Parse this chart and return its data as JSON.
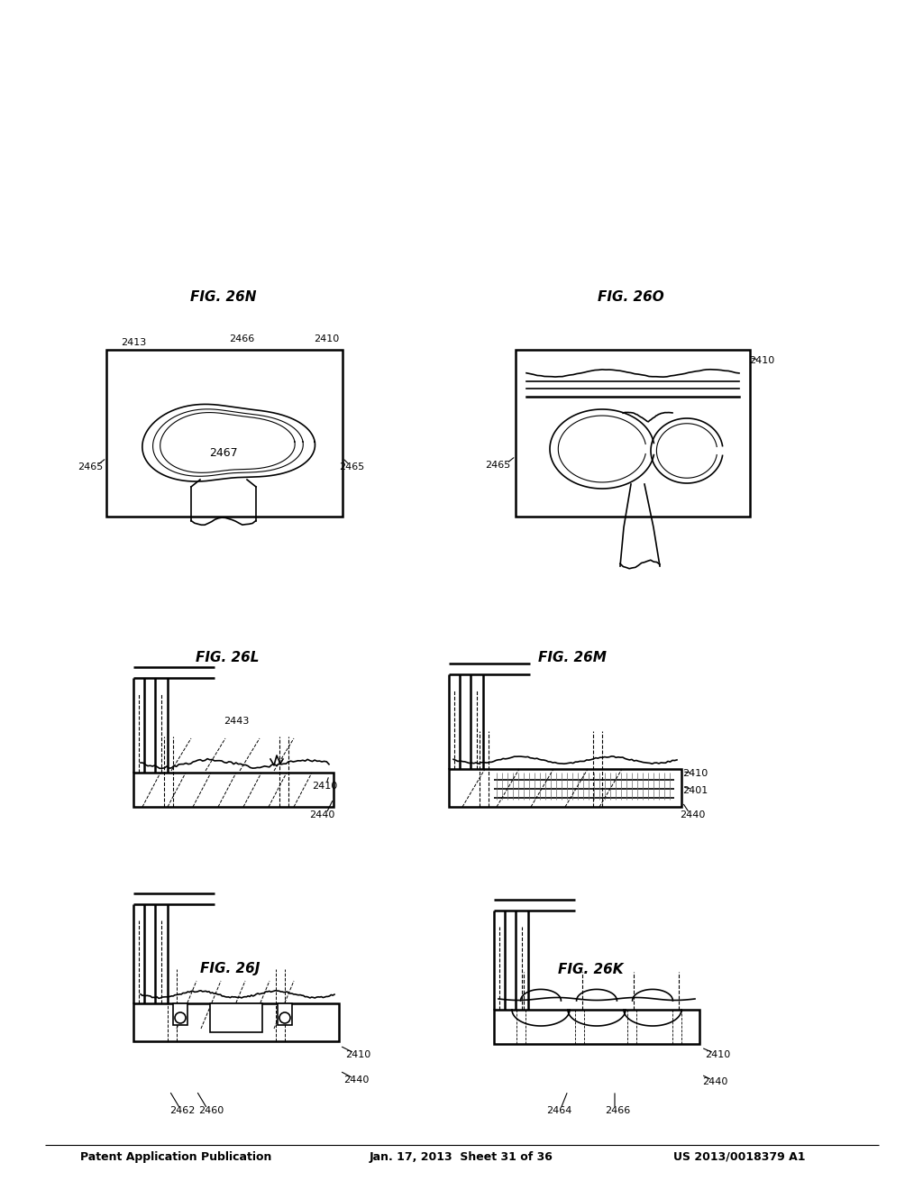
{
  "page_title_left": "Patent Application Publication",
  "page_title_mid": "Jan. 17, 2013  Sheet 31 of 36",
  "page_title_right": "US 2013/0018379 A1",
  "background_color": "#ffffff",
  "line_color": "#000000",
  "figures": [
    {
      "name": "FIG. 26J",
      "labels": [
        "2462",
        "2460",
        "2440",
        "2410"
      ]
    },
    {
      "name": "FIG. 26K",
      "labels": [
        "2464",
        "2466",
        "2440",
        "2410"
      ]
    },
    {
      "name": "FIG. 26L",
      "labels": [
        "2440",
        "2410",
        "2443"
      ]
    },
    {
      "name": "FIG. 26M",
      "labels": [
        "2440",
        "2401",
        "2410"
      ]
    },
    {
      "name": "FIG. 26N",
      "labels": [
        "2465",
        "2465",
        "2467",
        "2413",
        "2466",
        "2410"
      ]
    },
    {
      "name": "FIG. 26O",
      "labels": [
        "2465",
        "2410"
      ]
    }
  ]
}
